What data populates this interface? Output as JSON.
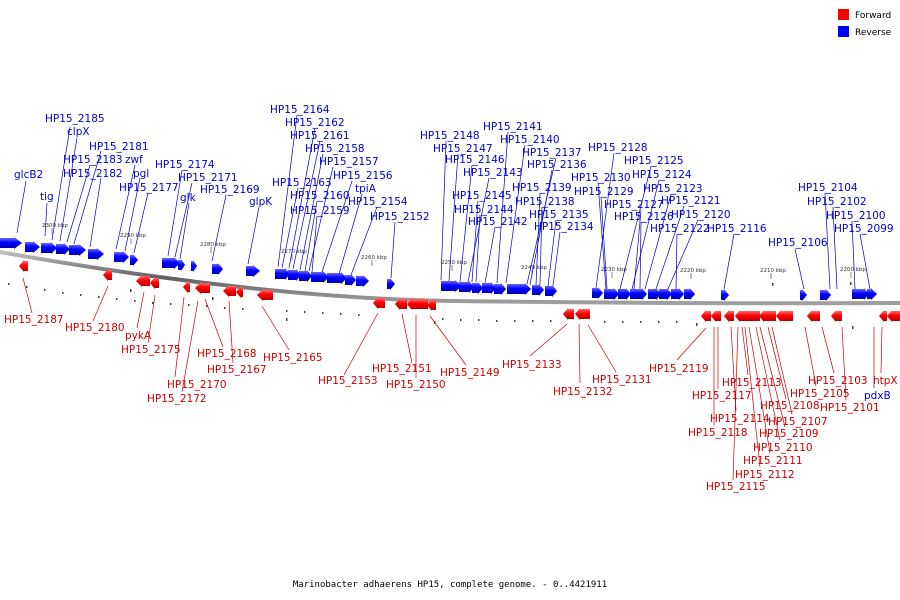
{
  "title": "Marinobacter adhaerens HP15, complete genome. - 0..4421911",
  "legend": [
    {
      "label": "Forward",
      "color": "#ff0000"
    },
    {
      "label": "Reverse",
      "color": "#0000ff"
    }
  ],
  "colors": {
    "forward_label": "#cc0000",
    "reverse_label": "#0000cc",
    "backbone": "#808080"
  },
  "ticks": [
    "2300 kbp",
    "2290 kbp",
    "2280 kbp",
    "2270 kbp",
    "2260 kbp",
    "2250 kbp",
    "2240 kbp",
    "2230 kbp",
    "2220 kbp",
    "2210 kbp",
    "2200 kbp"
  ],
  "reverse_labels": [
    "glcB2",
    "tig",
    "HP15_2185",
    "clpX",
    "HP15_2181",
    "HP15_2183",
    "zwf",
    "HP15_2182",
    "pgl",
    "HP15_2177",
    "HP15_2174",
    "HP15_2171",
    "glk",
    "HP15_2169",
    "glpK",
    "HP15_2164",
    "HP15_2162",
    "HP15_2161",
    "HP15_2158",
    "HP15_2157",
    "HP15_2163",
    "HP15_2156",
    "HP15_2160",
    "tpiA",
    "HP15_2159",
    "HP15_2154",
    "HP15_2152",
    "HP15_2148",
    "HP15_2147",
    "HP15_2146",
    "HP15_2141",
    "HP15_2140",
    "HP15_2137",
    "HP15_2136",
    "HP15_2143",
    "HP15_2145",
    "HP15_2139",
    "HP15_2144",
    "HP15_2138",
    "HP15_2142",
    "HP15_2135",
    "HP15_2134",
    "HP15_2128",
    "HP15_2125",
    "HP15_2130",
    "HP15_2124",
    "HP15_2129",
    "HP15_2123",
    "HP15_2127",
    "HP15_2121",
    "HP15_2126",
    "HP15_2120",
    "HP15_2122",
    "HP15_2116",
    "HP15_2104",
    "HP15_2102",
    "HP15_2100",
    "HP15_2106",
    "HP15_2099"
  ],
  "forward_labels": [
    "HP15_2187",
    "HP15_2180",
    "pykA",
    "HP15_2175",
    "HP15_2168",
    "HP15_2167",
    "HP15_2170",
    "HP15_2172",
    "HP15_2165",
    "HP15_2153",
    "HP15_2151",
    "HP15_2150",
    "HP15_2149",
    "HP15_2133",
    "HP15_2132",
    "HP15_2131",
    "HP15_2119",
    "HP15_2113",
    "HP15_2117",
    "HP15_2114",
    "HP15_2118",
    "HP15_2108",
    "HP15_2107",
    "HP15_2109",
    "HP15_2110",
    "HP15_2111",
    "HP15_2112",
    "HP15_2115",
    "HP15_2105",
    "HP15_2103",
    "HP15_2101",
    "htpX",
    "pdxB"
  ]
}
